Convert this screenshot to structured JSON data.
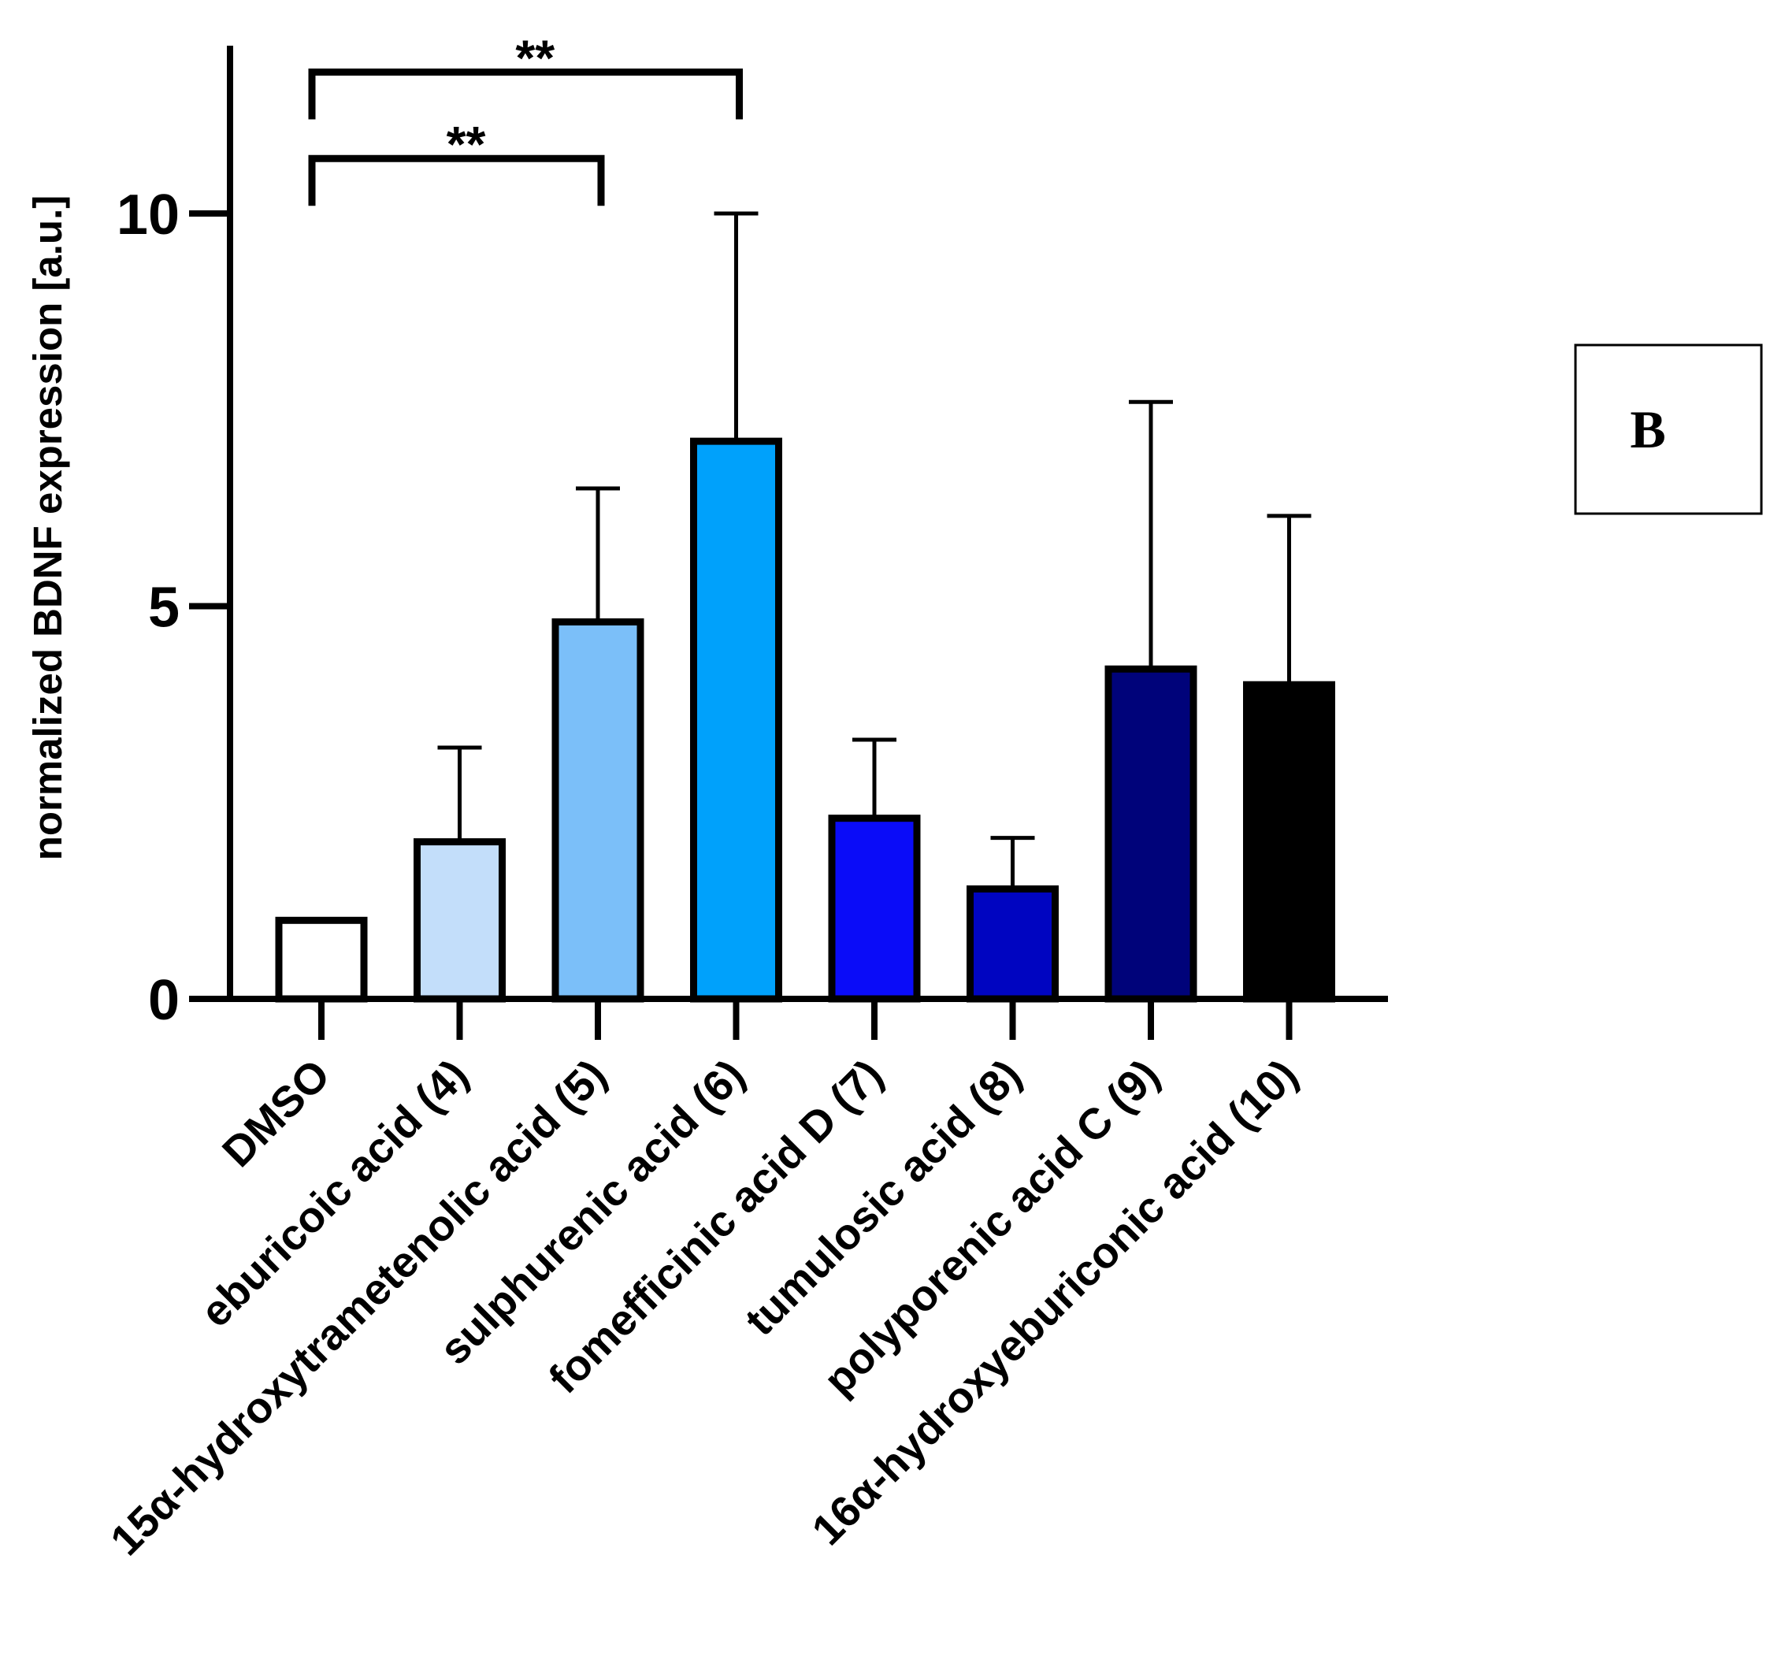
{
  "chart_data": {
    "type": "bar",
    "title": "",
    "xlabel": "",
    "ylabel": "normalized BDNF expression [a.u.]",
    "ylim": [
      0,
      12
    ],
    "yticks": [
      0,
      5,
      10
    ],
    "grid": false,
    "categories": [
      "DMSO",
      "eburicoic acid (4)",
      "15α-hydroxytrametenolic acid (5)",
      "sulphurenic acid (6)",
      "fomefficinic acid D (7)",
      "tumulosic acid (8)",
      "polyporenic acid C (9)",
      "16α-hydroxyeburiconic acid (10)"
    ],
    "values": [
      1.0,
      2.0,
      4.8,
      7.1,
      2.3,
      1.4,
      4.2,
      4.0
    ],
    "errors": [
      0.0,
      1.2,
      1.7,
      2.9,
      1.0,
      0.65,
      3.4,
      2.15
    ],
    "colors": [
      "#ffffff",
      "#c3defa",
      "#7bbff9",
      "#00a1fb",
      "#0a0cf8",
      "#0005c1",
      "#00037a",
      "#000000"
    ],
    "significance": [
      {
        "from": 0,
        "to": 2,
        "label": "**"
      },
      {
        "from": 0,
        "to": 3,
        "label": "**"
      }
    ],
    "panel_label": "B"
  }
}
